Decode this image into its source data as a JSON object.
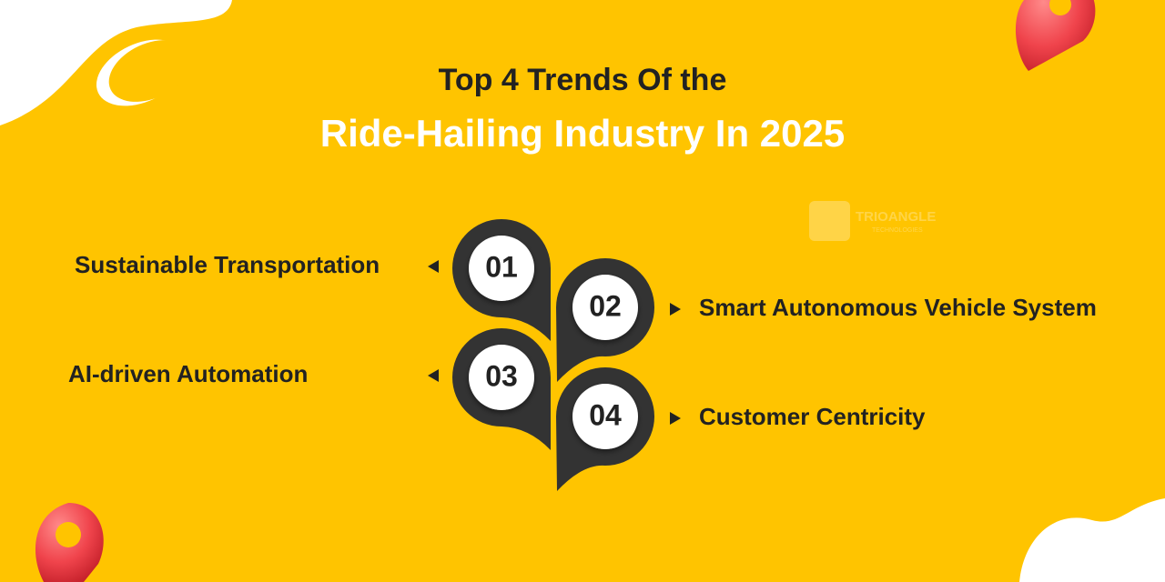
{
  "header": {
    "title_line1": "Top 4 Trends Of the",
    "title_line2": "Ride-Hailing Industry In 2025"
  },
  "logo": {
    "name": "TRIOANGLE",
    "tagline": "TECHNOLOGIES"
  },
  "items": [
    {
      "number": "01",
      "label": "Sustainable Transportation"
    },
    {
      "number": "02",
      "label": "Smart Autonomous Vehicle System"
    },
    {
      "number": "03",
      "label": "AI-driven Automation"
    },
    {
      "number": "04",
      "label": "Customer Centricity"
    }
  ]
}
